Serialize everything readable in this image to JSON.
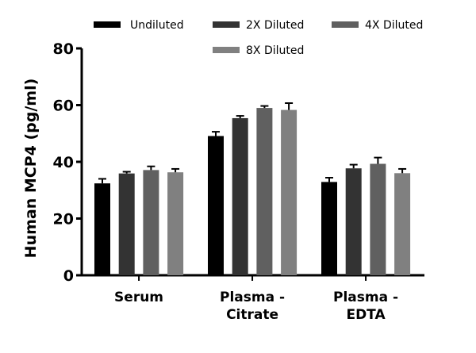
{
  "chart_data": {
    "type": "bar",
    "title": "",
    "xlabel": "",
    "ylabel": "Human MCP4 (pg/ml)",
    "ylim": [
      0,
      80
    ],
    "yticks": [
      0,
      20,
      40,
      60,
      80
    ],
    "categories": [
      [
        "Serum"
      ],
      [
        "Plasma -",
        "Citrate"
      ],
      [
        "Plasma -",
        "EDTA"
      ]
    ],
    "legend_position": "top",
    "grid": false,
    "series": [
      {
        "name": "Undiluted",
        "color": "#000000",
        "values": [
          32.4,
          49.1,
          32.9
        ],
        "errors": [
          1.6,
          1.5,
          1.5
        ]
      },
      {
        "name": "2X Diluted",
        "color": "#333333",
        "values": [
          35.9,
          55.4,
          37.7
        ],
        "errors": [
          0.6,
          0.8,
          1.3
        ]
      },
      {
        "name": "4X Diluted",
        "color": "#606060",
        "values": [
          37.1,
          59.0,
          39.3
        ],
        "errors": [
          1.3,
          0.7,
          2.2
        ]
      },
      {
        "name": "8X Diluted",
        "color": "#808080",
        "values": [
          36.3,
          58.3,
          36.0
        ],
        "errors": [
          1.2,
          2.4,
          1.5
        ]
      }
    ]
  }
}
